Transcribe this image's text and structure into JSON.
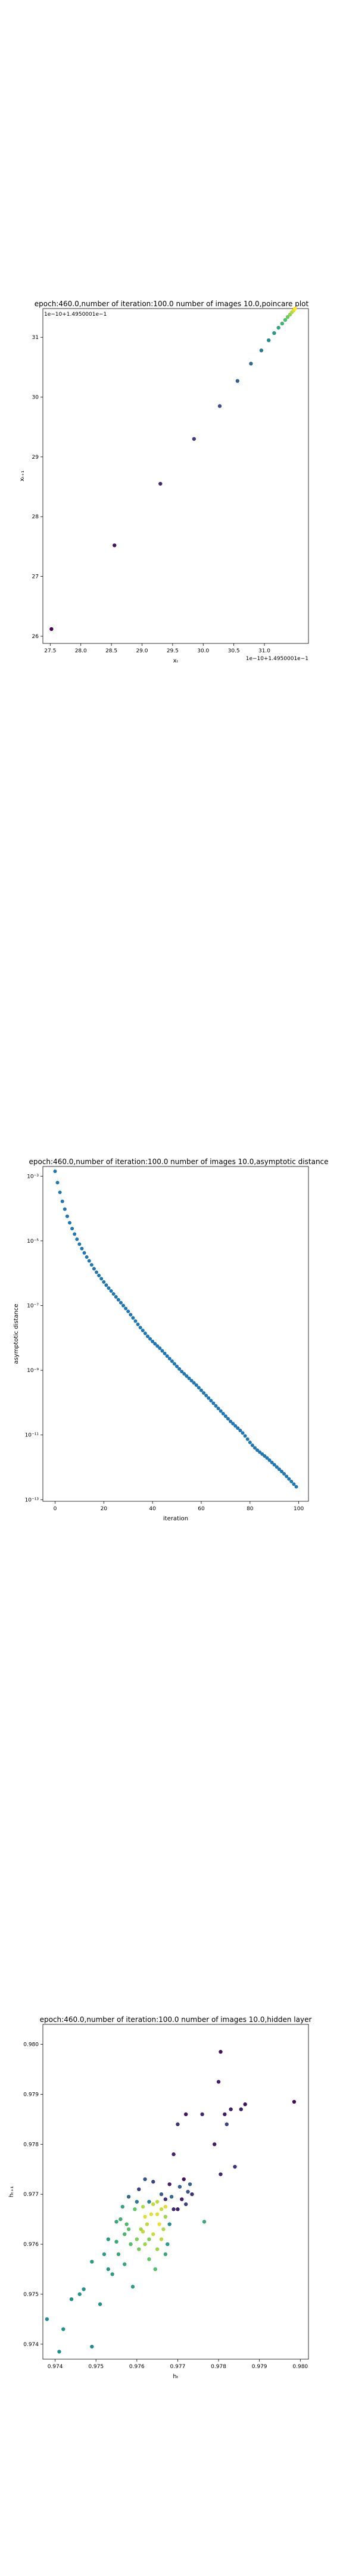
{
  "chart_data": [
    {
      "type": "scatter",
      "title": "epoch:460.0,number of iteration:100.0  number of images 10.0,poincare plot",
      "xlabel": "xₜ",
      "ylabel": "xₜ₊₁",
      "xticks": [
        "27.5",
        "28.0",
        "28.5",
        "29.0",
        "29.5",
        "30.0",
        "30.5",
        "31.0"
      ],
      "yticks": [
        "26",
        "27",
        "28",
        "29",
        "30",
        "31"
      ],
      "x_offset_label": "1e−10+1.4950001e−1",
      "y_offset_label": "1e−10+1.4950001e−1",
      "xlim": [
        27.38,
        31.72
      ],
      "ylim": [
        25.88,
        31.48
      ],
      "colormap": "viridis",
      "points": [
        [
          27.52,
          26.12
        ],
        [
          28.55,
          27.52
        ],
        [
          29.3,
          28.55
        ],
        [
          29.85,
          29.3
        ],
        [
          30.27,
          29.85
        ],
        [
          30.56,
          30.27
        ],
        [
          30.78,
          30.56
        ],
        [
          30.95,
          30.78
        ],
        [
          31.07,
          30.95
        ],
        [
          31.16,
          31.07
        ],
        [
          31.23,
          31.16
        ],
        [
          31.29,
          31.23
        ],
        [
          31.34,
          31.29
        ],
        [
          31.38,
          31.34
        ],
        [
          31.42,
          31.38
        ],
        [
          31.45,
          31.42
        ],
        [
          31.48,
          31.45
        ],
        [
          31.5,
          31.48
        ]
      ]
    },
    {
      "type": "scatter",
      "title": "epoch:460.0,number of iteration:100.0  number of images 10.0,asymptotic distance",
      "xlabel": "iteration",
      "ylabel": "asymptotic distance",
      "xticks": [
        "0",
        "20",
        "40",
        "60",
        "80",
        "100"
      ],
      "yticks": [
        "10⁻³",
        "10⁻⁵",
        "10⁻⁷",
        "10⁻⁹",
        "10⁻¹¹",
        "10⁻¹³"
      ],
      "scale_y": "log",
      "xlim": [
        -5,
        104
      ],
      "log10_ylim": [
        -13.05,
        -2.7
      ],
      "color": "#1f77b4",
      "log10_y": [
        -2.85,
        -3.2,
        -3.5,
        -3.78,
        -4.02,
        -4.24,
        -4.44,
        -4.62,
        -4.79,
        -4.95,
        -5.1,
        -5.24,
        -5.37,
        -5.5,
        -5.62,
        -5.74,
        -5.86,
        -5.97,
        -6.07,
        -6.17,
        -6.27,
        -6.37,
        -6.46,
        -6.55,
        -6.64,
        -6.73,
        -6.82,
        -6.91,
        -7.0,
        -7.09,
        -7.18,
        -7.28,
        -7.38,
        -7.48,
        -7.58,
        -7.68,
        -7.77,
        -7.86,
        -7.95,
        -8.03,
        -8.11,
        -8.18,
        -8.25,
        -8.32,
        -8.4,
        -8.48,
        -8.56,
        -8.64,
        -8.72,
        -8.8,
        -8.88,
        -8.96,
        -9.04,
        -9.11,
        -9.18,
        -9.25,
        -9.32,
        -9.39,
        -9.46,
        -9.54,
        -9.62,
        -9.7,
        -9.78,
        -9.86,
        -9.94,
        -10.02,
        -10.1,
        -10.18,
        -10.26,
        -10.34,
        -10.42,
        -10.5,
        -10.58,
        -10.65,
        -10.72,
        -10.79,
        -10.86,
        -10.94,
        -11.03,
        -11.13,
        -11.23,
        -11.32,
        -11.4,
        -11.47,
        -11.53,
        -11.59,
        -11.65,
        -11.71,
        -11.78,
        -11.85,
        -11.92,
        -11.99,
        -12.06,
        -12.13,
        -12.2,
        -12.28,
        -12.36,
        -12.44,
        -12.52,
        -12.6
      ]
    },
    {
      "type": "scatter",
      "title": "epoch:460.0,number of iteration:100.0  number of images 10.0,hidden layer",
      "xlabel": "hₜ",
      "ylabel": "hₜ₊₁",
      "xticks": [
        "0.974",
        "0.975",
        "0.976",
        "0.977",
        "0.978",
        "0.979",
        "0.980"
      ],
      "yticks": [
        "0.974",
        "0.975",
        "0.976",
        "0.977",
        "0.978",
        "0.979",
        "0.980"
      ],
      "xlim": [
        0.9737,
        0.9802
      ],
      "ylim": [
        0.9737,
        0.9804
      ],
      "colormap": "viridis",
      "points": [
        [
          0.9741,
          0.97385,
          0.5
        ],
        [
          0.9738,
          0.9745,
          0.48
        ],
        [
          0.9742,
          0.9743,
          0.5
        ],
        [
          0.9744,
          0.9749,
          0.5
        ],
        [
          0.9746,
          0.975,
          0.52
        ],
        [
          0.9747,
          0.9751,
          0.52
        ],
        [
          0.9749,
          0.97395,
          0.48
        ],
        [
          0.9749,
          0.97565,
          0.55
        ],
        [
          0.9751,
          0.9748,
          0.5
        ],
        [
          0.9752,
          0.9758,
          0.55
        ],
        [
          0.9753,
          0.9761,
          0.55
        ],
        [
          0.9753,
          0.9755,
          0.52
        ],
        [
          0.9754,
          0.9754,
          0.55
        ],
        [
          0.9755,
          0.97645,
          0.6
        ],
        [
          0.97555,
          0.9758,
          0.6
        ],
        [
          0.9756,
          0.9765,
          0.62
        ],
        [
          0.9757,
          0.9762,
          0.65
        ],
        [
          0.9757,
          0.9756,
          0.6
        ],
        [
          0.9758,
          0.9763,
          0.72
        ],
        [
          0.97585,
          0.976,
          0.7
        ],
        [
          0.97595,
          0.9767,
          0.75
        ],
        [
          0.976,
          0.9761,
          0.8
        ],
        [
          0.97605,
          0.9759,
          0.78
        ],
        [
          0.9761,
          0.9763,
          0.85
        ],
        [
          0.97615,
          0.97625,
          0.9
        ],
        [
          0.9762,
          0.976,
          0.85
        ],
        [
          0.9762,
          0.97655,
          0.95
        ],
        [
          0.97625,
          0.9764,
          0.9
        ],
        [
          0.9763,
          0.9757,
          0.75
        ],
        [
          0.97635,
          0.9766,
          0.95
        ],
        [
          0.9764,
          0.9762,
          0.92
        ],
        [
          0.9764,
          0.9768,
          0.9
        ],
        [
          0.97645,
          0.9755,
          0.7
        ],
        [
          0.9765,
          0.9766,
          0.95
        ],
        [
          0.9765,
          0.9759,
          0.85
        ],
        [
          0.97655,
          0.9764,
          0.97
        ],
        [
          0.9766,
          0.9767,
          0.92
        ],
        [
          0.9766,
          0.9761,
          0.9
        ],
        [
          0.97665,
          0.9763,
          0.88
        ],
        [
          0.9767,
          0.97655,
          0.85
        ],
        [
          0.9767,
          0.9758,
          0.6
        ],
        [
          0.97675,
          0.976,
          0.55
        ],
        [
          0.9768,
          0.9764,
          0.5
        ],
        [
          0.9764,
          0.97725,
          0.2
        ],
        [
          0.9763,
          0.97685,
          0.45
        ],
        [
          0.9762,
          0.9773,
          0.25
        ],
        [
          0.97605,
          0.9771,
          0.2
        ],
        [
          0.9766,
          0.977,
          0.3
        ],
        [
          0.9767,
          0.9769,
          0.15
        ],
        [
          0.9768,
          0.9772,
          0.1
        ],
        [
          0.97685,
          0.97695,
          0.35
        ],
        [
          0.9769,
          0.9767,
          0.12
        ],
        [
          0.977,
          0.9767,
          0.1
        ],
        [
          0.97705,
          0.97715,
          0.3
        ],
        [
          0.9771,
          0.9769,
          0.1
        ],
        [
          0.97715,
          0.9773,
          0.05
        ],
        [
          0.9772,
          0.9768,
          0.2
        ],
        [
          0.97725,
          0.97705,
          0.25
        ],
        [
          0.9773,
          0.9772,
          0.3
        ],
        [
          0.97735,
          0.977,
          0.15
        ],
        [
          0.9769,
          0.9778,
          0.1
        ],
        [
          0.977,
          0.9784,
          0.15
        ],
        [
          0.9772,
          0.9786,
          0.05
        ],
        [
          0.9776,
          0.9786,
          0.12
        ],
        [
          0.9779,
          0.978,
          0.08
        ],
        [
          0.978,
          0.97925,
          0.1
        ],
        [
          0.97805,
          0.97985,
          0.05
        ],
        [
          0.97815,
          0.9786,
          0.08
        ],
        [
          0.9782,
          0.9784,
          0.2
        ],
        [
          0.9783,
          0.9787,
          0.1
        ],
        [
          0.97855,
          0.9787,
          0.1
        ],
        [
          0.9784,
          0.97755,
          0.15
        ],
        [
          0.97805,
          0.9774,
          0.12
        ],
        [
          0.97865,
          0.9788,
          0.05
        ],
        [
          0.97985,
          0.97885,
          0.02
        ],
        [
          0.97765,
          0.97645,
          0.6
        ],
        [
          0.9759,
          0.97515,
          0.55
        ],
        [
          0.9758,
          0.97695,
          0.35
        ],
        [
          0.976,
          0.97685,
          0.4
        ],
        [
          0.97565,
          0.97675,
          0.58
        ],
        [
          0.9755,
          0.97605,
          0.6
        ],
        [
          0.97575,
          0.9764,
          0.68
        ],
        [
          0.97615,
          0.97675,
          0.88
        ],
        [
          0.9765,
          0.97685,
          0.9
        ],
        [
          0.9767,
          0.97675,
          0.95
        ],
        [
          0.9763,
          0.9761,
          0.8
        ]
      ]
    }
  ]
}
